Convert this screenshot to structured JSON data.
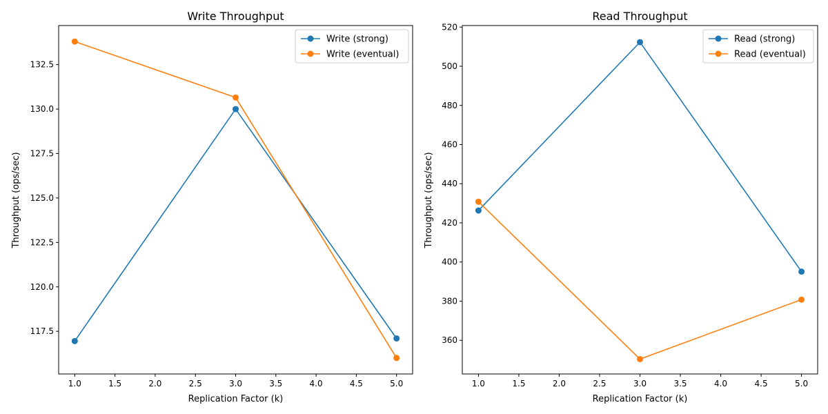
{
  "chart_data": [
    {
      "type": "line",
      "title": "Write Throughput",
      "xlabel": "Replication Factor (k)",
      "ylabel": "Throughput (ops/sec)",
      "x": [
        1,
        3,
        5
      ],
      "xlim": [
        0.8,
        5.2
      ],
      "ylim": [
        115.1,
        134.7
      ],
      "xticks": [
        1.0,
        1.5,
        2.0,
        2.5,
        3.0,
        3.5,
        4.0,
        4.5,
        5.0
      ],
      "xtick_labels": [
        "1.0",
        "1.5",
        "2.0",
        "2.5",
        "3.0",
        "3.5",
        "4.0",
        "4.5",
        "5.0"
      ],
      "yticks": [
        117.5,
        120.0,
        122.5,
        125.0,
        127.5,
        130.0,
        132.5
      ],
      "ytick_labels": [
        "117.5",
        "120.0",
        "122.5",
        "125.0",
        "127.5",
        "130.0",
        "132.5"
      ],
      "grid": false,
      "legend_position": "top-right",
      "series": [
        {
          "name": "Write (strong)",
          "color": "#1f77b4",
          "values": [
            116.95,
            130.0,
            117.1
          ]
        },
        {
          "name": "Write (eventual)",
          "color": "#ff7f0e",
          "values": [
            133.8,
            130.65,
            116.0
          ]
        }
      ]
    },
    {
      "type": "line",
      "title": "Read Throughput",
      "xlabel": "Replication Factor (k)",
      "ylabel": "Throughput (ops/sec)",
      "x": [
        1,
        3,
        5
      ],
      "xlim": [
        0.8,
        5.2
      ],
      "ylim": [
        342.8,
        520.8
      ],
      "xticks": [
        1.0,
        1.5,
        2.0,
        2.5,
        3.0,
        3.5,
        4.0,
        4.5,
        5.0
      ],
      "xtick_labels": [
        "1.0",
        "1.5",
        "2.0",
        "2.5",
        "3.0",
        "3.5",
        "4.0",
        "4.5",
        "5.0"
      ],
      "yticks": [
        360,
        380,
        400,
        420,
        440,
        460,
        480,
        500,
        520
      ],
      "ytick_labels": [
        "360",
        "380",
        "400",
        "420",
        "440",
        "460",
        "480",
        "500",
        "520"
      ],
      "grid": false,
      "legend_position": "top-right",
      "series": [
        {
          "name": "Read (strong)",
          "color": "#1f77b4",
          "values": [
            426.3,
            512.3,
            395.1
          ]
        },
        {
          "name": "Read (eventual)",
          "color": "#ff7f0e",
          "values": [
            430.8,
            350.4,
            380.8
          ]
        }
      ]
    }
  ]
}
